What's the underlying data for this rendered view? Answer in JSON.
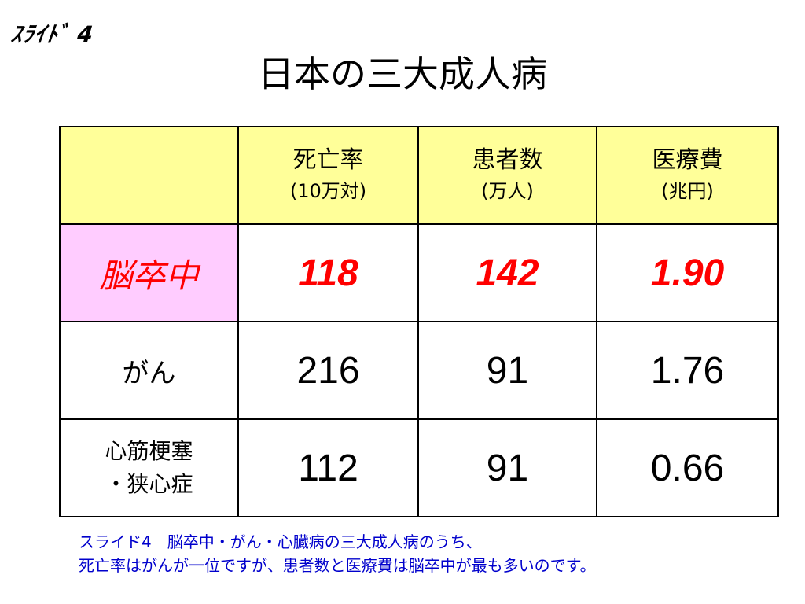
{
  "slide_label": "ｽﾗｲﾄﾞ 4",
  "title": "日本の三大成人病",
  "table": {
    "headers": [
      {
        "line1": "",
        "line2": ""
      },
      {
        "line1": "死亡率",
        "line2": "(10万対)"
      },
      {
        "line1": "患者数",
        "line2": "(万人)"
      },
      {
        "line1": "医療費",
        "line2": "(兆円)"
      }
    ],
    "rows": [
      {
        "name": "脳卒中",
        "values": [
          "118",
          "142",
          "1.90"
        ]
      },
      {
        "name": "がん",
        "values": [
          "216",
          "91",
          "1.76"
        ]
      },
      {
        "name_line1": "心筋梗塞",
        "name_line2": "・狭心症",
        "values": [
          "112",
          "91",
          "0.66"
        ]
      }
    ]
  },
  "caption": {
    "line1": "スライド4　脳卒中・がん・心臓病の三大成人病のうち、",
    "line2": "死亡率はがんが一位ですが、患者数と医療費は脳卒中が最も多いのです。"
  },
  "colors": {
    "header_bg": "#ffff99",
    "highlight_row_bg": "#ffccff",
    "highlight_text": "#ff0000",
    "caption_text": "#0000cc"
  }
}
